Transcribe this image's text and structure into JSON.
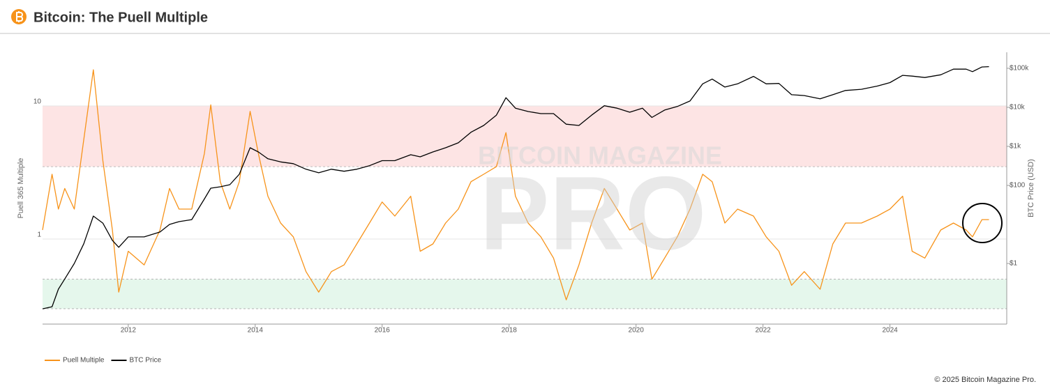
{
  "chart_data": {
    "type": "line",
    "title": "Bitcoin: The Puell Multiple",
    "ylabel": "Puell 365 Multiple",
    "y2label": "BTC Price (USD)",
    "watermark": [
      "BITCOIN MAGAZINE",
      "PRO"
    ],
    "copyright": "© 2025 Bitcoin Magazine Pro.",
    "log_y": true,
    "log_y2": true,
    "grid": true,
    "legend": "bottom-left",
    "xlim": [
      2010.65,
      2025.84
    ],
    "xticks": [
      2012,
      2014,
      2016,
      2018,
      2020,
      2022,
      2024
    ],
    "ylim": [
      0.23,
      25.3
    ],
    "yticks": [
      1,
      10
    ],
    "y2lim": [
      0.028,
      257000
    ],
    "y2ticks": [
      {
        "value": 1,
        "label": "$1"
      },
      {
        "value": 100,
        "label": "$100"
      },
      {
        "value": 1000,
        "label": "$1k"
      },
      {
        "value": 10000,
        "label": "$10k"
      },
      {
        "value": 100000,
        "label": "$100k"
      }
    ],
    "bands": [
      {
        "from": 3.5,
        "to": 10,
        "color": "#fde4e4"
      },
      {
        "from": 0.3,
        "to": 0.5,
        "color": "#e5f7ec"
      }
    ],
    "x": [
      2010.65,
      2010.8,
      2010.9,
      2011.0,
      2011.15,
      2011.3,
      2011.45,
      2011.6,
      2011.75,
      2011.85,
      2012.0,
      2012.25,
      2012.5,
      2012.65,
      2012.8,
      2013.0,
      2013.2,
      2013.3,
      2013.45,
      2013.6,
      2013.75,
      2013.92,
      2014.05,
      2014.2,
      2014.4,
      2014.6,
      2014.8,
      2015.0,
      2015.2,
      2015.4,
      2015.6,
      2015.8,
      2016.0,
      2016.2,
      2016.45,
      2016.6,
      2016.8,
      2017.0,
      2017.2,
      2017.4,
      2017.6,
      2017.8,
      2017.95,
      2018.1,
      2018.3,
      2018.5,
      2018.7,
      2018.9,
      2019.1,
      2019.3,
      2019.5,
      2019.7,
      2019.9,
      2020.1,
      2020.25,
      2020.45,
      2020.65,
      2020.85,
      2021.05,
      2021.2,
      2021.4,
      2021.6,
      2021.85,
      2022.05,
      2022.25,
      2022.45,
      2022.65,
      2022.9,
      2023.1,
      2023.3,
      2023.55,
      2023.8,
      2024.0,
      2024.2,
      2024.35,
      2024.55,
      2024.8,
      2025.0,
      2025.2,
      2025.3,
      2025.45,
      2025.56
    ],
    "series": [
      {
        "name": "Puell Multiple",
        "color": "#f7931a",
        "axis": "y",
        "values": [
          1.17,
          3.07,
          1.68,
          2.4,
          1.68,
          5.6,
          18.7,
          3.9,
          1.17,
          0.4,
          0.81,
          0.64,
          1.17,
          2.4,
          1.68,
          1.68,
          4.4,
          10.2,
          2.7,
          1.68,
          2.7,
          9.1,
          4.4,
          2.1,
          1.32,
          1.04,
          0.57,
          0.4,
          0.57,
          0.64,
          0.92,
          1.32,
          1.9,
          1.49,
          2.1,
          0.81,
          0.92,
          1.32,
          1.68,
          2.7,
          3.07,
          3.5,
          6.3,
          2.1,
          1.32,
          1.04,
          0.72,
          0.35,
          0.64,
          1.32,
          2.4,
          1.68,
          1.17,
          1.32,
          0.5,
          0.72,
          1.04,
          1.68,
          3.07,
          2.7,
          1.32,
          1.68,
          1.49,
          1.04,
          0.81,
          0.45,
          0.57,
          0.42,
          0.92,
          1.32,
          1.32,
          1.49,
          1.68,
          2.1,
          0.81,
          0.72,
          1.17,
          1.32,
          1.17,
          1.04,
          1.4,
          1.4
        ]
      },
      {
        "name": "BTC Price",
        "color": "#000000",
        "axis": "y2",
        "values": [
          0.069,
          0.078,
          0.22,
          0.4,
          1,
          3.2,
          16.4,
          10.8,
          3.9,
          2.6,
          4.8,
          4.8,
          6.4,
          10,
          11.8,
          13.3,
          45,
          85,
          92,
          104,
          193,
          920,
          720,
          480,
          400,
          360,
          260,
          210,
          260,
          230,
          260,
          320,
          430,
          430,
          610,
          540,
          720,
          920,
          1230,
          2300,
          3430,
          6300,
          17600,
          9500,
          7800,
          6900,
          6900,
          3700,
          3430,
          6300,
          11000,
          9500,
          7500,
          9500,
          5500,
          8500,
          10500,
          14500,
          40000,
          53000,
          33000,
          40000,
          62000,
          40000,
          41000,
          21000,
          20000,
          16500,
          21000,
          27000,
          29000,
          35000,
          43000,
          66000,
          63000,
          58000,
          68000,
          95000,
          95000,
          82000,
          108000,
          110000
        ]
      }
    ]
  }
}
